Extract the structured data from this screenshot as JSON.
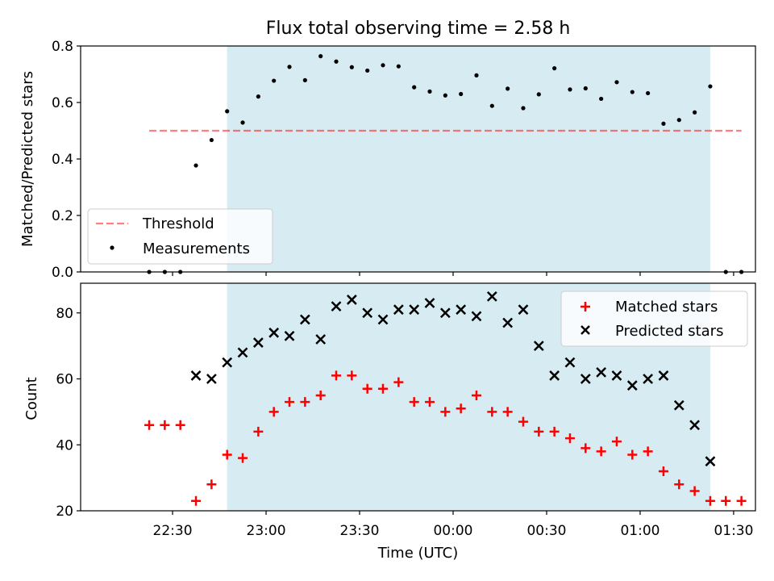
{
  "title": "Flux total observing time = 2.58 h",
  "colors": {
    "observing_band": "#add8e6",
    "threshold": "#ff0000",
    "measurements": "#000000",
    "matched": "#ff0000",
    "predicted": "#000000"
  },
  "chart_data": [
    {
      "type": "scatter",
      "panel": "top",
      "title": "Flux total observing time = 2.58 h",
      "xlabel": "",
      "ylabel": "Matched/Predicted stars",
      "x_unit": "minutes after 22:30 UTC",
      "xlim": [
        -29.5,
        187
      ],
      "ylim": [
        0,
        0.8
      ],
      "yticks": [
        0.0,
        0.2,
        0.4,
        0.6,
        0.8
      ],
      "ytick_labels": [
        "0.0",
        "0.2",
        "0.4",
        "0.6",
        "0.8"
      ],
      "xticks": [
        0,
        30,
        60,
        90,
        120,
        150,
        180
      ],
      "grid": false,
      "legend_position": "lower-left",
      "observing_window": [
        17.5,
        172.5
      ],
      "threshold": {
        "name": "Threshold",
        "y": 0.5,
        "x_range": [
          -7.5,
          182.5
        ]
      },
      "series": [
        {
          "name": "Measurements",
          "marker": "dot",
          "x": [
            -7.5,
            -2.5,
            2.5,
            7.5,
            12.5,
            17.5,
            22.5,
            27.5,
            32.5,
            37.5,
            42.5,
            47.5,
            52.5,
            57.5,
            62.5,
            67.5,
            72.5,
            77.5,
            82.5,
            87.5,
            92.5,
            97.5,
            102.5,
            107.5,
            112.5,
            117.5,
            122.5,
            127.5,
            132.5,
            137.5,
            142.5,
            147.5,
            152.5,
            157.5,
            162.5,
            167.5,
            172.5,
            177.5,
            182.5
          ],
          "y": [
            0.0,
            0.0,
            0.0,
            0.377,
            0.467,
            0.569,
            0.529,
            0.621,
            0.677,
            0.726,
            0.679,
            0.764,
            0.745,
            0.725,
            0.713,
            0.732,
            0.728,
            0.654,
            0.639,
            0.625,
            0.63,
            0.696,
            0.588,
            0.649,
            0.58,
            0.629,
            0.721,
            0.646,
            0.65,
            0.613,
            0.672,
            0.637,
            0.633,
            0.525,
            0.538,
            0.565,
            0.657,
            0.0,
            0.0
          ]
        }
      ]
    },
    {
      "type": "scatter",
      "panel": "bottom",
      "xlabel": "Time (UTC)",
      "ylabel": "Count",
      "x_unit": "minutes after 22:30 UTC",
      "xlim": [
        -29.5,
        187
      ],
      "ylim": [
        20,
        89
      ],
      "yticks": [
        20,
        40,
        60,
        80
      ],
      "ytick_labels": [
        "20",
        "40",
        "60",
        "80"
      ],
      "xticks": [
        0,
        30,
        60,
        90,
        120,
        150,
        180
      ],
      "xtick_labels": [
        "22:30",
        "23:00",
        "23:30",
        "00:00",
        "00:30",
        "01:00",
        "01:30"
      ],
      "grid": false,
      "legend_position": "upper-right",
      "observing_window": [
        17.5,
        172.5
      ],
      "series": [
        {
          "name": "Matched stars",
          "marker": "plus",
          "x": [
            -7.5,
            -2.5,
            2.5,
            7.5,
            12.5,
            17.5,
            22.5,
            27.5,
            32.5,
            37.5,
            42.5,
            47.5,
            52.5,
            57.5,
            62.5,
            67.5,
            72.5,
            77.5,
            82.5,
            87.5,
            92.5,
            97.5,
            102.5,
            107.5,
            112.5,
            117.5,
            122.5,
            127.5,
            132.5,
            137.5,
            142.5,
            147.5,
            152.5,
            157.5,
            162.5,
            167.5,
            172.5,
            177.5,
            182.5
          ],
          "y": [
            46,
            46,
            46,
            23,
            28,
            37,
            36,
            44,
            50,
            53,
            53,
            55,
            61,
            61,
            57,
            57,
            59,
            53,
            53,
            50,
            51,
            55,
            50,
            50,
            47,
            44,
            44,
            42,
            39,
            38,
            41,
            37,
            38,
            32,
            28,
            26,
            23,
            23,
            23
          ]
        },
        {
          "name": "Predicted stars",
          "marker": "x",
          "x": [
            7.5,
            12.5,
            17.5,
            22.5,
            27.5,
            32.5,
            37.5,
            42.5,
            47.5,
            52.5,
            57.5,
            62.5,
            67.5,
            72.5,
            77.5,
            82.5,
            87.5,
            92.5,
            97.5,
            102.5,
            107.5,
            112.5,
            117.5,
            122.5,
            127.5,
            132.5,
            137.5,
            142.5,
            147.5,
            152.5,
            157.5,
            162.5,
            167.5,
            172.5
          ],
          "y": [
            61,
            60,
            65,
            68,
            71,
            74,
            73,
            78,
            72,
            82,
            84,
            80,
            78,
            81,
            81,
            83,
            80,
            81,
            79,
            85,
            77,
            81,
            70,
            61,
            65,
            60,
            62,
            61,
            58,
            60,
            61,
            52,
            46,
            35
          ]
        }
      ]
    }
  ]
}
